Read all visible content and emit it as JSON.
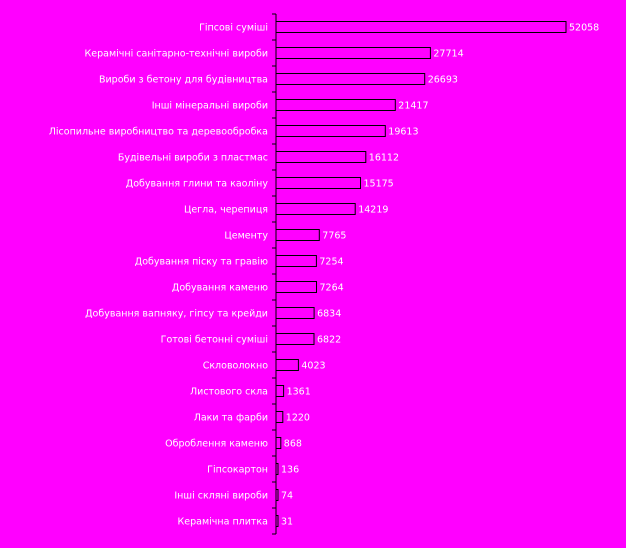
{
  "colors": {
    "background": "#FF00FF",
    "bar_fill": "#FF00FF",
    "bar_stroke": "#000000",
    "text": "#FFFFFF"
  },
  "chart_data": {
    "type": "bar",
    "orientation": "horizontal",
    "title": "",
    "xlabel": "",
    "ylabel": "",
    "grid": false,
    "legend": "none",
    "xlim": [
      0,
      52058
    ],
    "categories": [
      "Гіпсові суміші",
      "Керамічні санітарно-технічні вироби",
      "Вироби з бетону для будівництва",
      "Інші мінеральні вироби",
      "Лісопильне виробництво та деревообробка",
      "Будівельні вироби з пластмас",
      "Добування глини та каоліну",
      "Цегла, черепиця",
      "Цементу",
      "Добування піску та гравію",
      "Добування каменю",
      "Добування вапняку, гіпсу та крейди",
      "Готові бетонні суміші",
      "Скловолокно",
      "Листового скла",
      "Лаки та фарби",
      "Оброблення каменю",
      "Гіпсокартон",
      "Інші скляні вироби",
      "Керамічна плитка"
    ],
    "values": [
      52058,
      27714,
      26693,
      21417,
      19613,
      16112,
      15175,
      14219,
      7765,
      7254,
      7264,
      6834,
      6822,
      4023,
      1361,
      1220,
      868,
      136,
      74,
      31
    ],
    "value_labels": [
      "52058",
      "27714",
      "26693",
      "21417",
      "19613",
      "16112",
      "15175",
      "14219",
      "7765",
      "7254",
      "7264",
      "6834",
      "6822",
      "4023",
      "1361",
      "1220",
      "868",
      "136",
      "74",
      "31"
    ]
  }
}
